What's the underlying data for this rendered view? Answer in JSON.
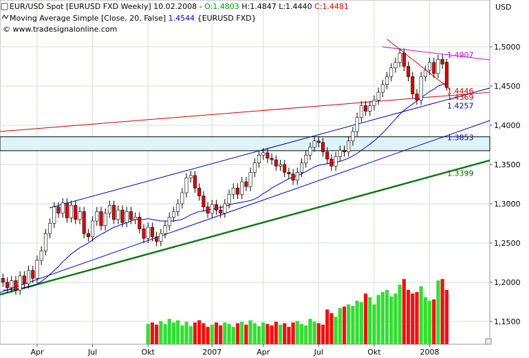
{
  "header": {
    "symbol": "EUR/USD Spot [EURUSD FXD  Weekly] 10.02.2008 - ",
    "open": "O:1.4803",
    "high": "H:1.4847",
    "low": "L:1.4440",
    "close": "C:1.4481",
    "indicator": "Moving Average Simple [Close, 20, False]",
    "indicator_value": "1.4544",
    "indicator_suffix": "{EURUSD FXD}",
    "copyright": "© www.tradesignalonline.com"
  },
  "chart_data": {
    "type": "candlestick",
    "y_label": "USD",
    "xlim": [
      -0.7,
      114.1
    ],
    "xticks": [
      {
        "value": 8,
        "label": "Apr"
      },
      {
        "value": 21,
        "label": "Jul"
      },
      {
        "value": 34,
        "label": "Okt"
      },
      {
        "value": 49,
        "label": "2007"
      },
      {
        "value": 61,
        "label": "Apr"
      },
      {
        "value": 74,
        "label": "Jul"
      },
      {
        "value": 87,
        "label": "Okt"
      },
      {
        "value": 100,
        "label": "2008"
      }
    ],
    "ylim": [
      1.121,
      1.5596
    ],
    "yticks": [
      {
        "value": 1.15,
        "label": "1,1500"
      },
      {
        "value": 1.2,
        "label": "1,2000"
      },
      {
        "value": 1.25,
        "label": "1,2500"
      },
      {
        "value": 1.3,
        "label": "1,3000"
      },
      {
        "value": 1.35,
        "label": "1,3500"
      },
      {
        "value": 1.4,
        "label": "1,4000"
      },
      {
        "value": 1.45,
        "label": "1,4500"
      },
      {
        "value": 1.5,
        "label": "1,5000"
      }
    ],
    "grid": true,
    "up_color": "#ffffff",
    "down_color": "#e00000",
    "volume_up_color": "#33dd33",
    "volume_down_color": "#ee1111",
    "ma_color": "#0000cc",
    "candles": [
      [
        1.205,
        1.211,
        1.194,
        1.2
      ],
      [
        1.2,
        1.206,
        1.187,
        1.193
      ],
      [
        1.193,
        1.208,
        1.187,
        1.202
      ],
      [
        1.202,
        1.208,
        1.184,
        1.19
      ],
      [
        1.19,
        1.214,
        1.184,
        1.208
      ],
      [
        1.208,
        1.214,
        1.192,
        1.198
      ],
      [
        1.198,
        1.221,
        1.192,
        1.215
      ],
      [
        1.215,
        1.221,
        1.199,
        1.205
      ],
      [
        1.205,
        1.234,
        1.199,
        1.228
      ],
      [
        1.228,
        1.246,
        1.222,
        1.24
      ],
      [
        1.24,
        1.268,
        1.234,
        1.262
      ],
      [
        1.262,
        1.281,
        1.256,
        1.275
      ],
      [
        1.275,
        1.302,
        1.269,
        1.296
      ],
      [
        1.296,
        1.302,
        1.282,
        1.288
      ],
      [
        1.288,
        1.307,
        1.282,
        1.301
      ],
      [
        1.301,
        1.307,
        1.276,
        1.282
      ],
      [
        1.282,
        1.304,
        1.276,
        1.298
      ],
      [
        1.298,
        1.304,
        1.274,
        1.28
      ],
      [
        1.28,
        1.296,
        1.274,
        1.29
      ],
      [
        1.29,
        1.296,
        1.256,
        1.262
      ],
      [
        1.262,
        1.268,
        1.252,
        1.258
      ],
      [
        1.258,
        1.284,
        1.252,
        1.278
      ],
      [
        1.278,
        1.296,
        1.272,
        1.29
      ],
      [
        1.29,
        1.296,
        1.266,
        1.272
      ],
      [
        1.272,
        1.294,
        1.266,
        1.288
      ],
      [
        1.288,
        1.304,
        1.282,
        1.298
      ],
      [
        1.298,
        1.304,
        1.274,
        1.28
      ],
      [
        1.28,
        1.298,
        1.274,
        1.292
      ],
      [
        1.292,
        1.298,
        1.27,
        1.276
      ],
      [
        1.276,
        1.296,
        1.27,
        1.29
      ],
      [
        1.29,
        1.296,
        1.274,
        1.28
      ],
      [
        1.28,
        1.289,
        1.274,
        1.283
      ],
      [
        1.283,
        1.289,
        1.262,
        1.268
      ],
      [
        1.268,
        1.274,
        1.25,
        1.256
      ],
      [
        1.256,
        1.276,
        1.25,
        1.27
      ],
      [
        1.27,
        1.276,
        1.252,
        1.258
      ],
      [
        1.258,
        1.264,
        1.246,
        1.252
      ],
      [
        1.252,
        1.268,
        1.246,
        1.262
      ],
      [
        1.262,
        1.278,
        1.256,
        1.272
      ],
      [
        1.272,
        1.289,
        1.266,
        1.283
      ],
      [
        1.283,
        1.296,
        1.277,
        1.29
      ],
      [
        1.29,
        1.306,
        1.284,
        1.3
      ],
      [
        1.3,
        1.32,
        1.294,
        1.314
      ],
      [
        1.314,
        1.339,
        1.308,
        1.333
      ],
      [
        1.333,
        1.342,
        1.327,
        1.336
      ],
      [
        1.336,
        1.342,
        1.314,
        1.32
      ],
      [
        1.32,
        1.326,
        1.304,
        1.31
      ],
      [
        1.31,
        1.316,
        1.29,
        1.296
      ],
      [
        1.296,
        1.302,
        1.282,
        1.288
      ],
      [
        1.288,
        1.305,
        1.282,
        1.299
      ],
      [
        1.299,
        1.305,
        1.286,
        1.292
      ],
      [
        1.292,
        1.298,
        1.282,
        1.288
      ],
      [
        1.288,
        1.306,
        1.282,
        1.3
      ],
      [
        1.3,
        1.318,
        1.294,
        1.312
      ],
      [
        1.312,
        1.326,
        1.306,
        1.32
      ],
      [
        1.32,
        1.326,
        1.306,
        1.312
      ],
      [
        1.312,
        1.334,
        1.306,
        1.328
      ],
      [
        1.328,
        1.334,
        1.316,
        1.322
      ],
      [
        1.322,
        1.346,
        1.316,
        1.34
      ],
      [
        1.34,
        1.358,
        1.334,
        1.352
      ],
      [
        1.352,
        1.368,
        1.346,
        1.362
      ],
      [
        1.362,
        1.371,
        1.356,
        1.365
      ],
      [
        1.365,
        1.371,
        1.352,
        1.358
      ],
      [
        1.358,
        1.364,
        1.35,
        1.356
      ],
      [
        1.356,
        1.362,
        1.342,
        1.348
      ],
      [
        1.348,
        1.356,
        1.342,
        1.35
      ],
      [
        1.35,
        1.356,
        1.334,
        1.34
      ],
      [
        1.34,
        1.346,
        1.332,
        1.338
      ],
      [
        1.338,
        1.344,
        1.324,
        1.33
      ],
      [
        1.33,
        1.346,
        1.324,
        1.34
      ],
      [
        1.34,
        1.358,
        1.334,
        1.352
      ],
      [
        1.352,
        1.368,
        1.346,
        1.362
      ],
      [
        1.362,
        1.378,
        1.356,
        1.372
      ],
      [
        1.372,
        1.386,
        1.366,
        1.38
      ],
      [
        1.38,
        1.386,
        1.372,
        1.378
      ],
      [
        1.378,
        1.384,
        1.36,
        1.366
      ],
      [
        1.366,
        1.372,
        1.351,
        1.357
      ],
      [
        1.357,
        1.363,
        1.342,
        1.348
      ],
      [
        1.348,
        1.366,
        1.342,
        1.36
      ],
      [
        1.36,
        1.374,
        1.354,
        1.368
      ],
      [
        1.368,
        1.374,
        1.36,
        1.366
      ],
      [
        1.366,
        1.386,
        1.36,
        1.38
      ],
      [
        1.38,
        1.398,
        1.374,
        1.392
      ],
      [
        1.392,
        1.416,
        1.386,
        1.41
      ],
      [
        1.41,
        1.431,
        1.404,
        1.425
      ],
      [
        1.425,
        1.431,
        1.412,
        1.418
      ],
      [
        1.418,
        1.431,
        1.412,
        1.425
      ],
      [
        1.425,
        1.438,
        1.419,
        1.432
      ],
      [
        1.432,
        1.448,
        1.426,
        1.442
      ],
      [
        1.442,
        1.458,
        1.436,
        1.452
      ],
      [
        1.452,
        1.468,
        1.446,
        1.462
      ],
      [
        1.462,
        1.479,
        1.456,
        1.473
      ],
      [
        1.473,
        1.486,
        1.467,
        1.48
      ],
      [
        1.48,
        1.498,
        1.474,
        1.492
      ],
      [
        1.492,
        1.498,
        1.469,
        1.475
      ],
      [
        1.475,
        1.481,
        1.456,
        1.462
      ],
      [
        1.462,
        1.468,
        1.434,
        1.44
      ],
      [
        1.44,
        1.446,
        1.426,
        1.432
      ],
      [
        1.432,
        1.468,
        1.426,
        1.462
      ],
      [
        1.462,
        1.476,
        1.456,
        1.47
      ],
      [
        1.47,
        1.486,
        1.464,
        1.48
      ],
      [
        1.48,
        1.486,
        1.46,
        1.466
      ],
      [
        1.466,
        1.49,
        1.46,
        1.484
      ],
      [
        1.484,
        1.49,
        1.472,
        1.478
      ],
      [
        1.4803,
        1.4847,
        1.444,
        1.4481
      ]
    ],
    "ma": [
      1.19,
      1.19,
      1.191,
      1.191,
      1.192,
      1.193,
      1.194,
      1.195,
      1.198,
      1.201,
      1.205,
      1.21,
      1.215,
      1.22,
      1.226,
      1.231,
      1.236,
      1.24,
      1.244,
      1.247,
      1.25,
      1.254,
      1.258,
      1.261,
      1.264,
      1.267,
      1.27,
      1.272,
      1.274,
      1.276,
      1.278,
      1.28,
      1.28,
      1.28,
      1.281,
      1.28,
      1.279,
      1.278,
      1.278,
      1.278,
      1.278,
      1.279,
      1.28,
      1.283,
      1.286,
      1.288,
      1.29,
      1.291,
      1.292,
      1.293,
      1.294,
      1.295,
      1.297,
      1.298,
      1.3,
      1.301,
      1.302,
      1.303,
      1.304,
      1.306,
      1.309,
      1.313,
      1.316,
      1.32,
      1.323,
      1.326,
      1.329,
      1.332,
      1.334,
      1.336,
      1.338,
      1.341,
      1.344,
      1.347,
      1.349,
      1.35,
      1.351,
      1.352,
      1.353,
      1.354,
      1.356,
      1.358,
      1.361,
      1.364,
      1.368,
      1.372,
      1.376,
      1.38,
      1.385,
      1.39,
      1.396,
      1.402,
      1.408,
      1.414,
      1.419,
      1.423,
      1.427,
      1.431,
      1.435,
      1.439,
      1.443,
      1.446,
      1.45,
      1.452,
      1.4544
    ],
    "vlim": [
      0,
      95
    ],
    "volume": [
      null,
      null,
      null,
      null,
      null,
      null,
      null,
      null,
      null,
      null,
      null,
      null,
      null,
      null,
      null,
      null,
      null,
      null,
      null,
      null,
      null,
      null,
      null,
      null,
      null,
      null,
      null,
      null,
      null,
      null,
      null,
      null,
      null,
      null,
      28,
      30,
      27,
      32,
      28,
      35,
      30,
      33,
      26,
      31,
      25,
      30,
      33,
      29,
      24,
      27,
      30,
      26,
      30,
      28,
      24,
      29,
      31,
      27,
      33,
      29,
      25,
      30,
      28,
      26,
      31,
      27,
      29,
      24,
      30,
      32,
      28,
      26,
      35,
      31,
      29,
      27,
      48,
      43,
      38,
      50,
      52,
      55,
      53,
      60,
      58,
      70,
      65,
      55,
      68,
      72,
      75,
      66,
      70,
      82,
      90,
      75,
      70,
      72,
      80,
      65,
      60,
      62,
      88,
      90,
      75
    ],
    "band": {
      "top": 1.3853,
      "bottom": 1.3676,
      "color": "#dff4f8"
    },
    "lines": [
      {
        "color": "#dd00dd",
        "width": 1,
        "x": [
          88.8,
          114.1
        ],
        "y": [
          1.5,
          1.4833
        ]
      },
      {
        "color": "#e00000",
        "width": 1,
        "x": [
          90,
          104.9
        ],
        "y": [
          1.5096,
          1.4456
        ]
      },
      {
        "color": "#d00000",
        "width": 1,
        "x": [
          -0.7,
          114.1
        ],
        "y": [
          1.392,
          1.442
        ]
      },
      {
        "color": "#0000aa",
        "width": 1,
        "x": [
          10.9,
          114.1
        ],
        "y": [
          1.2947,
          1.4474
        ]
      },
      {
        "color": "#0000cc",
        "width": 1,
        "x": [
          -0.7,
          114.1
        ],
        "y": [
          1.187,
          1.406
        ]
      },
      {
        "color": "#117711",
        "width": 2.5,
        "x": [
          -0.7,
          114.1
        ],
        "y": [
          1.1842,
          1.3553
        ]
      }
    ],
    "levels": [
      {
        "value": 1.4907,
        "color": "#cc00cc"
      },
      {
        "value": 1.4446,
        "color": "#cc0000"
      },
      {
        "value": 1.4369,
        "color": "#cc0000"
      },
      {
        "value": 1.4257,
        "color": "#000099"
      },
      {
        "value": 1.3853,
        "color": "#000099"
      },
      {
        "value": 1.3399,
        "color": "#006600"
      }
    ]
  }
}
